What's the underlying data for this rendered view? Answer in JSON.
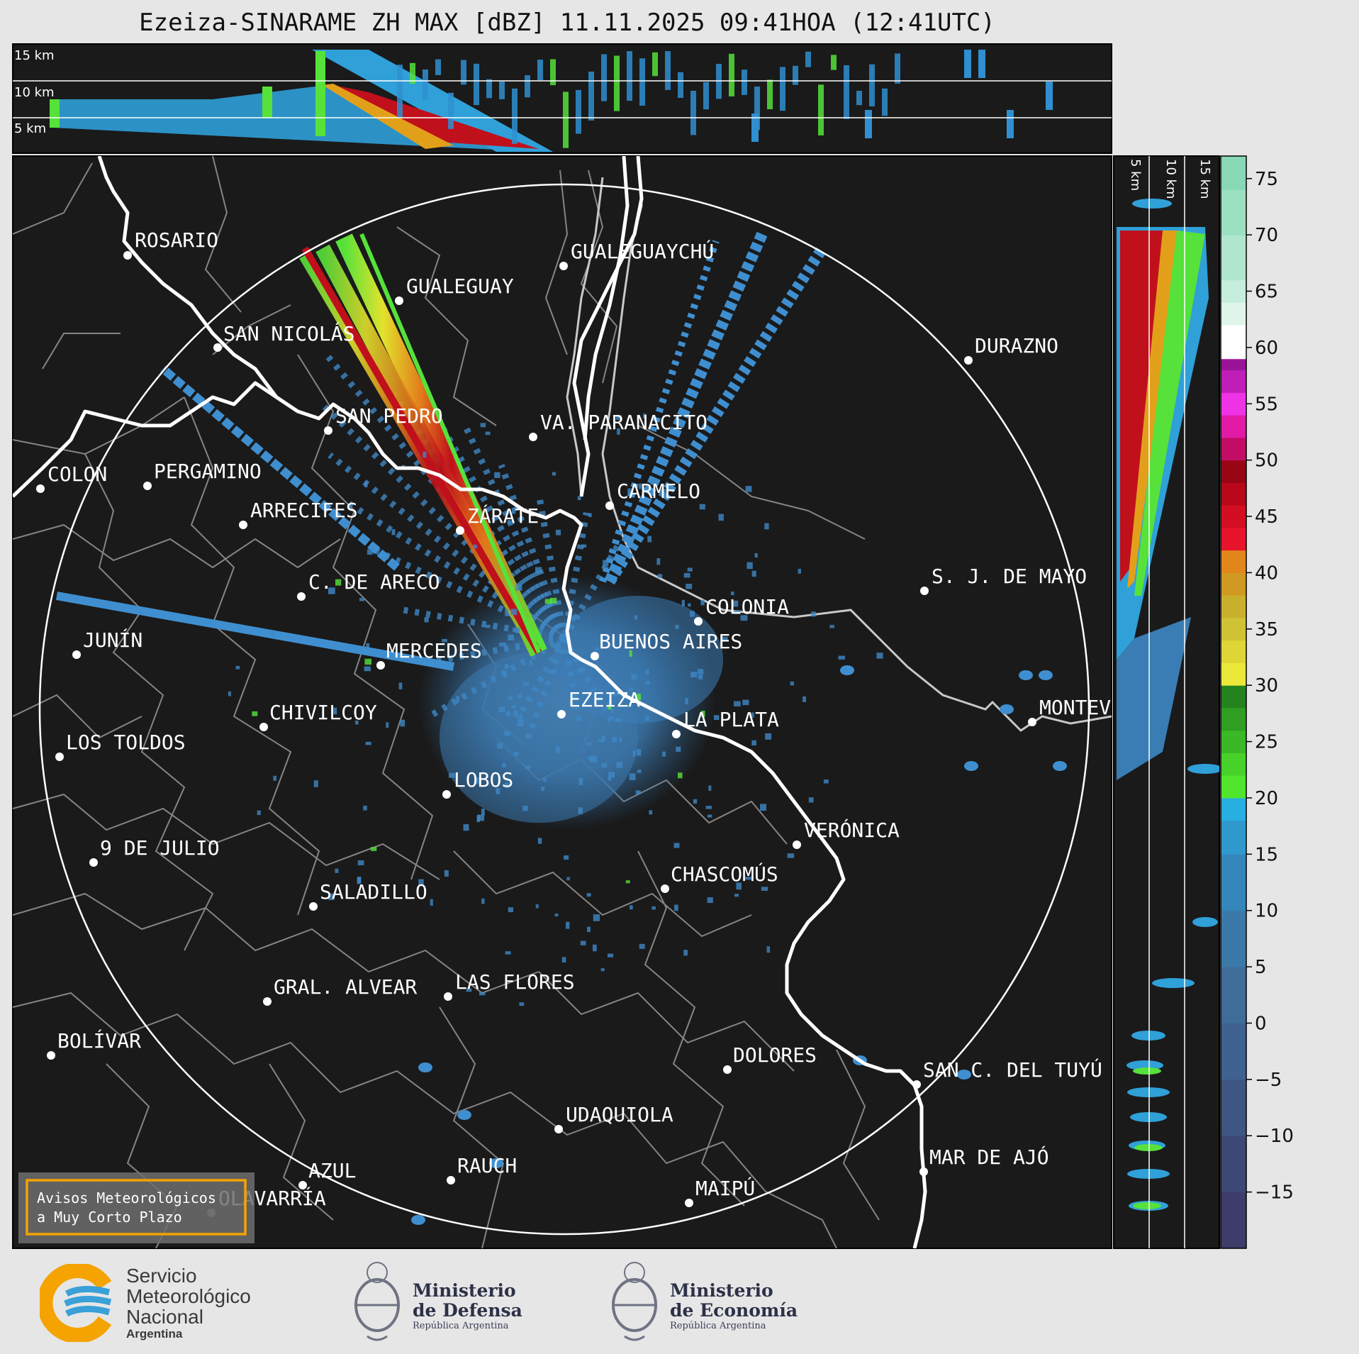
{
  "title": "Ezeiza-SINARAME ZH MAX [dBZ] 11.11.2025 09:41HOA (12:41UTC)",
  "top_profile": {
    "height_labels": [
      "15 km",
      "10 km",
      "5 km"
    ]
  },
  "side_profile": {
    "height_labels": [
      "5 km",
      "10 km",
      "15 km"
    ]
  },
  "colorbar": {
    "unit": "dBZ",
    "ticks": [
      "75",
      "70",
      "65",
      "60",
      "55",
      "50",
      "45",
      "40",
      "35",
      "30",
      "25",
      "20",
      "15",
      "10",
      "5",
      "0",
      "−5",
      "−10",
      "−15"
    ],
    "range": [
      -20,
      77
    ]
  },
  "cities": [
    {
      "name": "ROSARIO"
    },
    {
      "name": "GUALEGUAYCHÚ"
    },
    {
      "name": "GUALEGUAY"
    },
    {
      "name": "SAN NICOLÁS"
    },
    {
      "name": "DURAZNO"
    },
    {
      "name": "SAN PEDRO"
    },
    {
      "name": "VA. PARANACITO"
    },
    {
      "name": "COLON"
    },
    {
      "name": "PERGAMINO"
    },
    {
      "name": "CARMELO"
    },
    {
      "name": "ARRECIFES"
    },
    {
      "name": "ZÁRATE"
    },
    {
      "name": "S. J. DE MAYO"
    },
    {
      "name": "C. DE ARECO"
    },
    {
      "name": "COLONIA"
    },
    {
      "name": "JUNÍN"
    },
    {
      "name": "BUENOS AIRES"
    },
    {
      "name": "MERCEDES"
    },
    {
      "name": "MONTEV"
    },
    {
      "name": "EZEIZA"
    },
    {
      "name": "CHIVILCOY"
    },
    {
      "name": "LA PLATA"
    },
    {
      "name": "LOS TOLDOS"
    },
    {
      "name": "LOBOS"
    },
    {
      "name": "VERÓNICA"
    },
    {
      "name": "9 DE JULIO"
    },
    {
      "name": "CHASCOMÚS"
    },
    {
      "name": "SALADILLO"
    },
    {
      "name": "GRAL. ALVEAR"
    },
    {
      "name": "LAS FLORES"
    },
    {
      "name": "BOLÍVAR"
    },
    {
      "name": "DOLORES"
    },
    {
      "name": "SAN C. DEL TUYÚ"
    },
    {
      "name": "UDAQUIOLA"
    },
    {
      "name": "MAR DE AJÓ"
    },
    {
      "name": "AZUL"
    },
    {
      "name": "RAUCH"
    },
    {
      "name": "MAIPÚ"
    },
    {
      "name": "OLAVARRÍA"
    }
  ],
  "notice": {
    "line1": "Avisos Meteorológicos",
    "line2": "a Muy Corto Plazo"
  },
  "logos": {
    "smn": {
      "line1": "Servicio",
      "line2": "Meteorológico",
      "line3": "Nacional",
      "line4": "Argentina"
    },
    "defensa": {
      "line1": "Ministerio",
      "line2": "de Defensa",
      "line3": "República Argentina"
    },
    "economia": {
      "line1": "Ministerio",
      "line2": "de Economía",
      "line3": "República Argentina"
    }
  },
  "colors": {
    "background_map": "#1a1a1a",
    "page": "#e6e6e6",
    "boundary": "#888888",
    "coast": "#ffffff",
    "notice_border": "#f5a300",
    "echo_weak": "#3a7fb5"
  }
}
